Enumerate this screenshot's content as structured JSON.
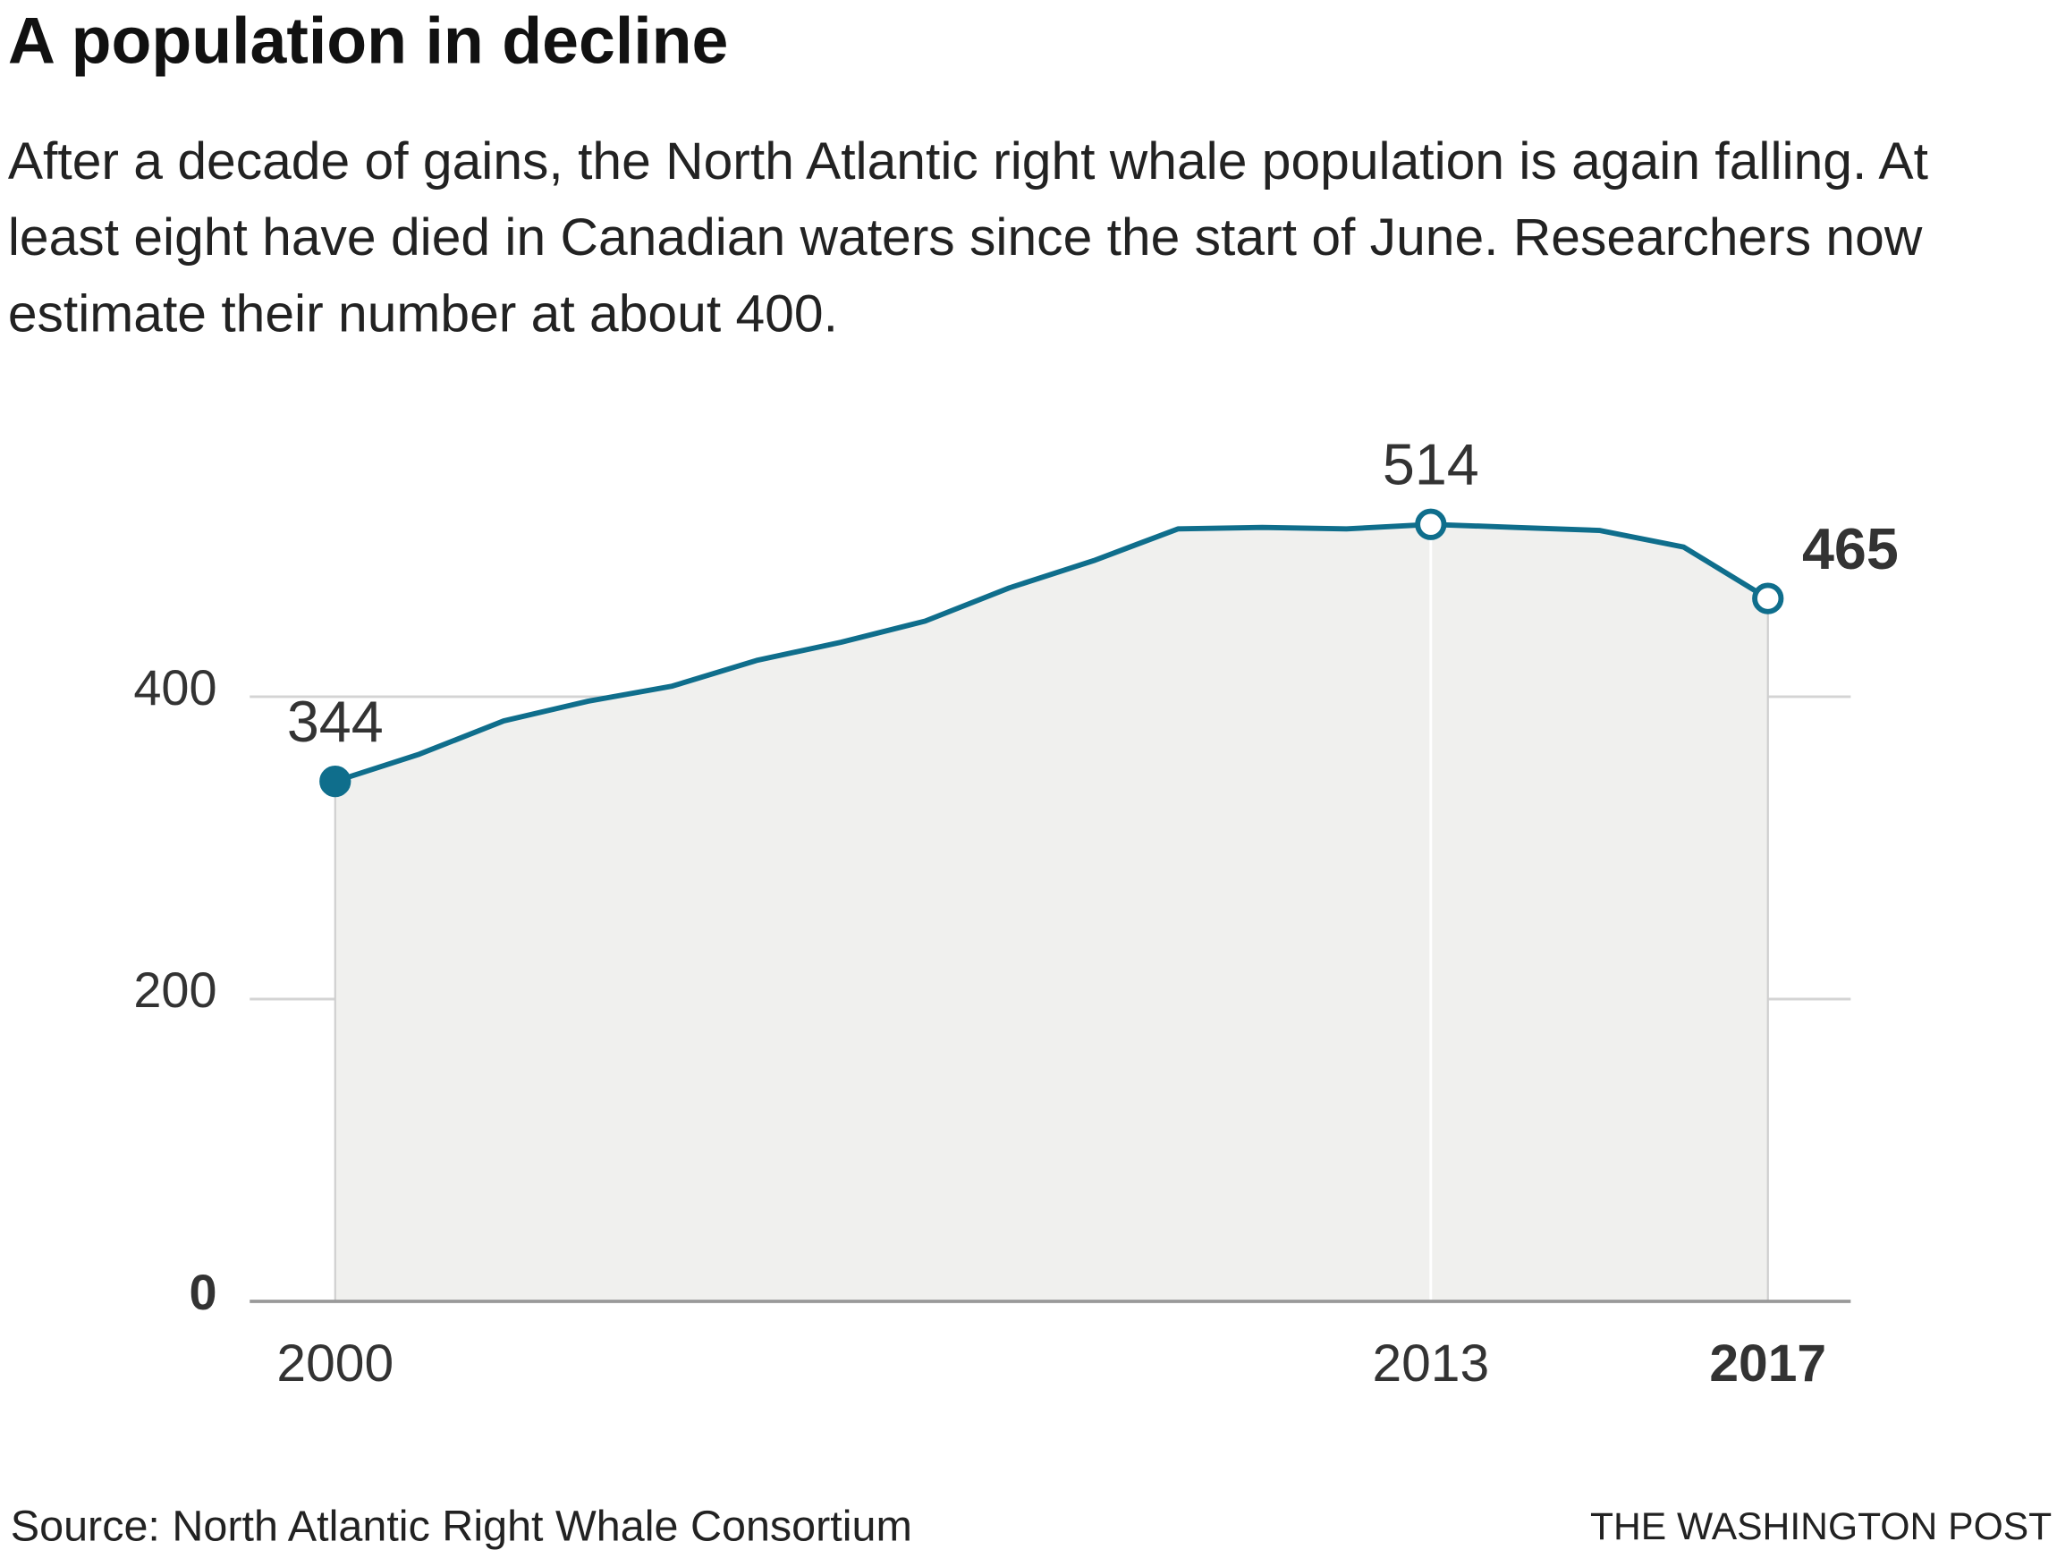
{
  "chart_data": {
    "type": "area-line",
    "title": "A population in decline",
    "subtitle": "After a decade of gains, the North Atlantic right whale population is again falling. At least eight have died in Canadian waters since the start of June. Researchers now estimate their number at about 400.",
    "x": [
      2000,
      2001,
      2002,
      2003,
      2004,
      2005,
      2006,
      2007,
      2008,
      2009,
      2010,
      2011,
      2012,
      2013,
      2014,
      2015,
      2016,
      2017
    ],
    "values": [
      344,
      362,
      384,
      397,
      407,
      424,
      436,
      450,
      472,
      490,
      511,
      512,
      511,
      514,
      512,
      510,
      499,
      465
    ],
    "color": "#0f6e8c",
    "xlim": [
      2000,
      2017
    ],
    "xticks": [
      2000,
      2013,
      2017
    ],
    "ylim": [
      0,
      560
    ],
    "yticks": [
      0,
      200,
      400
    ],
    "grid": true,
    "source": "Source: North Atlantic Right Whale Consortium",
    "credit": "THE WASHINGTON POST"
  }
}
